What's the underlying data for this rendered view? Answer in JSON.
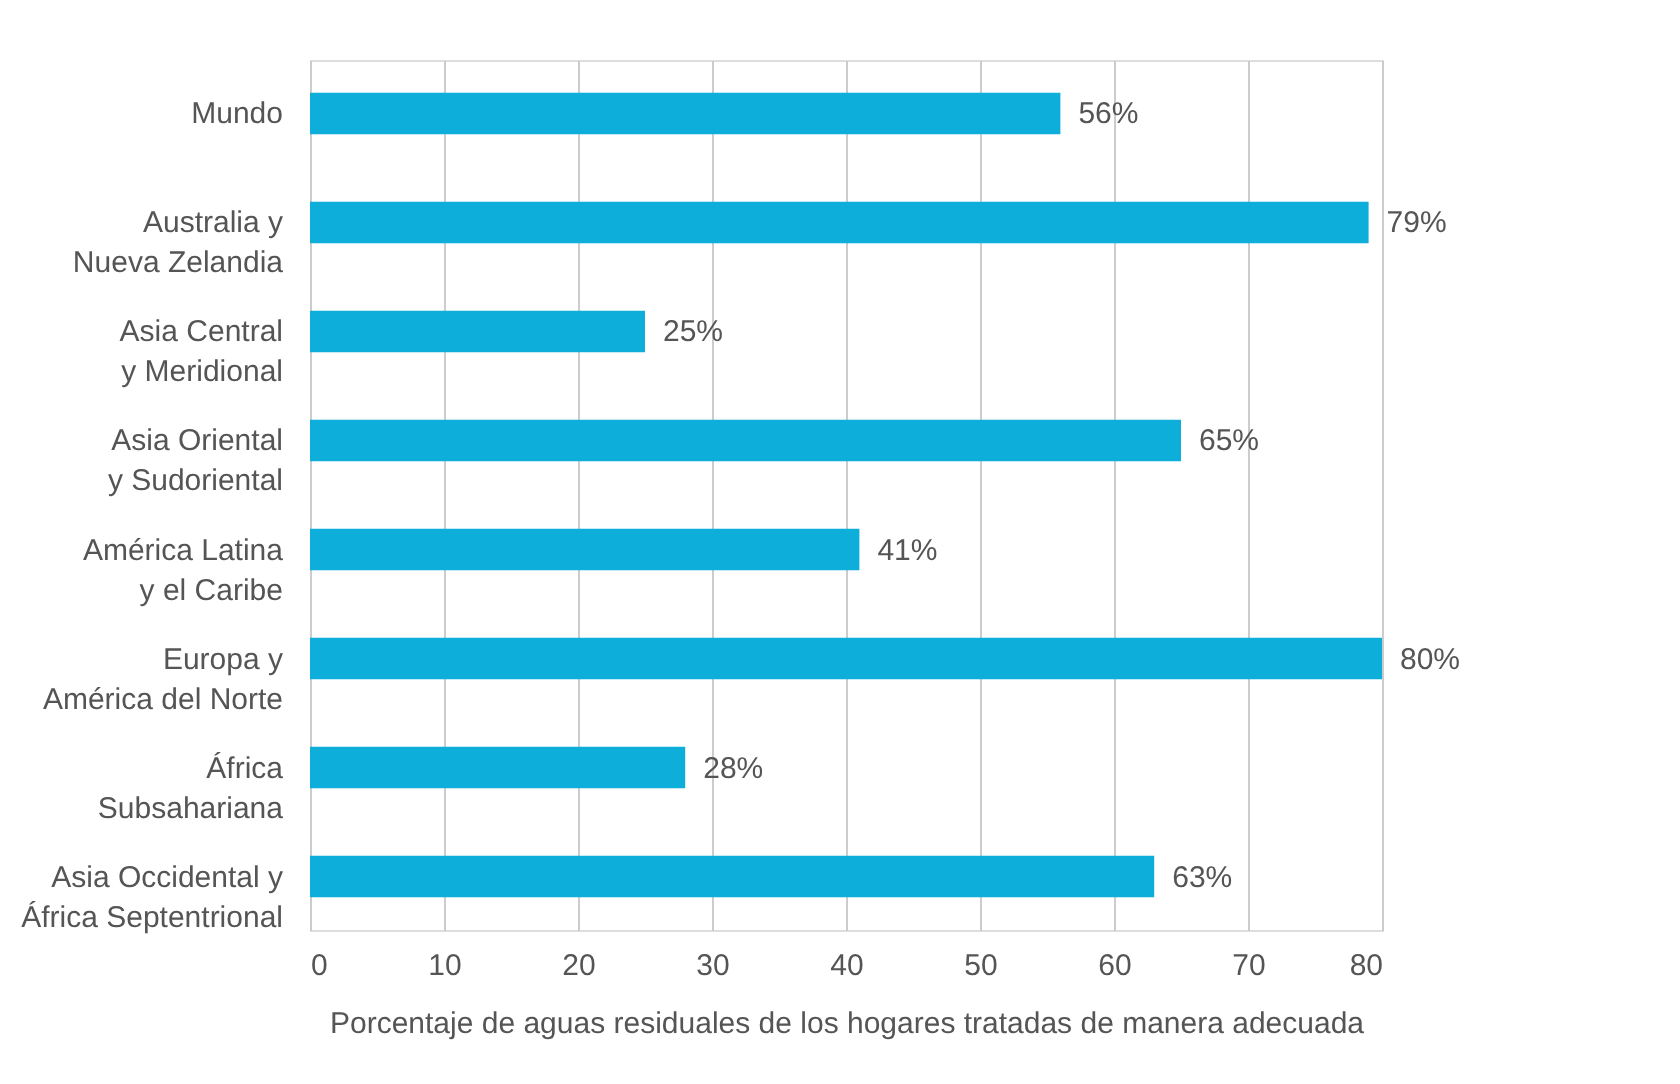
{
  "chart_data": {
    "type": "bar",
    "orientation": "horizontal",
    "categories": [
      "Mundo",
      "Australia y\nNueva Zelandia",
      "Asia Central\ny Meridional",
      "Asia Oriental\ny Sudoriental",
      "América Latina\ny el Caribe",
      "Europa y\nAmérica del Norte",
      "África\nSubsahariana",
      "Asia Occidental y\nÁfrica Septentrional"
    ],
    "values": [
      56,
      79,
      25,
      65,
      41,
      80,
      28,
      63
    ],
    "value_labels": [
      "56%",
      "79%",
      "25%",
      "65%",
      "41%",
      "80%",
      "28%",
      "63%"
    ],
    "color": "#0eaedb",
    "xlabel": "Porcentaje de aguas residuales de los hogares tratadas de manera adecuada",
    "xlim": [
      0,
      80
    ],
    "xticks": [
      0,
      10,
      20,
      30,
      40,
      50,
      60,
      70,
      80
    ],
    "grid": "x"
  }
}
